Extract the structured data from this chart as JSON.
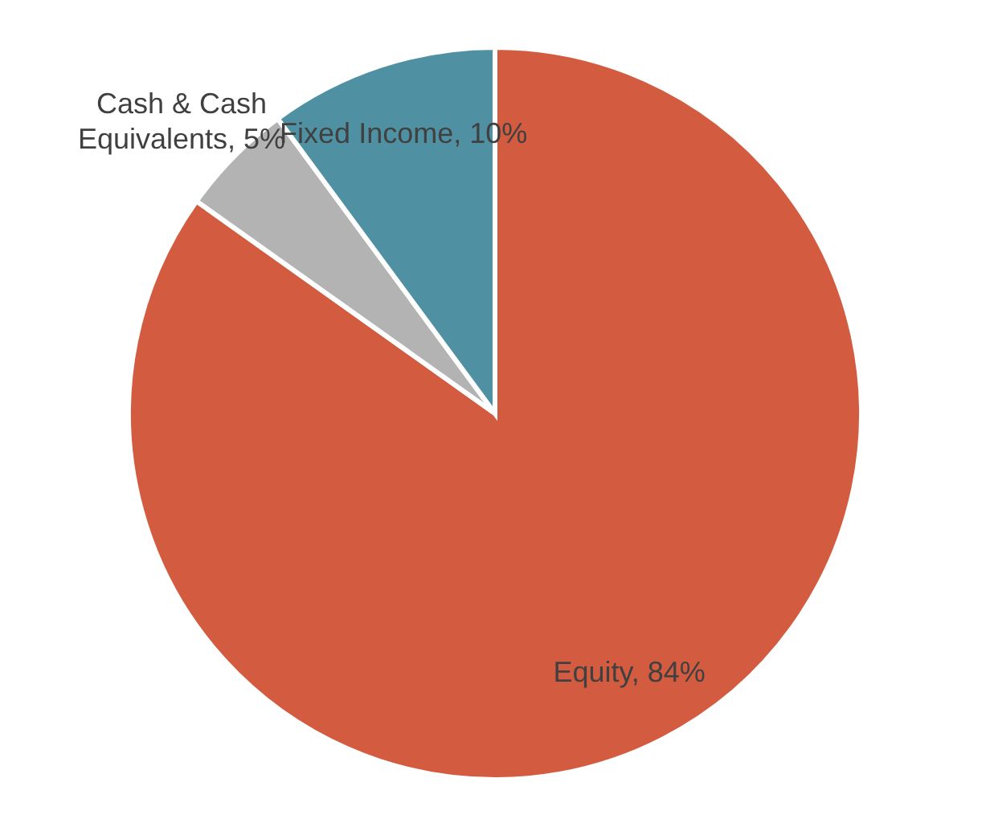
{
  "chart_data": {
    "type": "pie",
    "categories": [
      "Equity",
      "Cash & Cash Equivalents",
      "Fixed Income"
    ],
    "values": [
      84,
      5,
      10
    ],
    "value_labels": [
      "84%",
      "5%",
      "10%"
    ],
    "colors": [
      "#d35b3f",
      "#b3b3b3",
      "#4f91a3"
    ],
    "legend": false
  }
}
